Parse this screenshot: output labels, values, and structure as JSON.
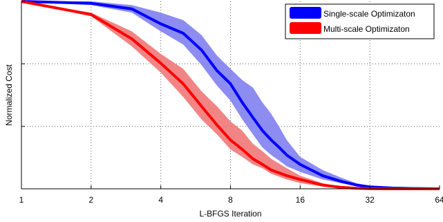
{
  "chart_data": {
    "type": "line",
    "xlabel": "L-BFGS Iteration",
    "ylabel": "Normalized Cost",
    "x_scale": "log2",
    "xlim": [
      1,
      64
    ],
    "ylim": [
      0,
      1
    ],
    "x_ticks": [
      1,
      2,
      4,
      8,
      16,
      32,
      64
    ],
    "x_tick_labels": [
      "1",
      "2",
      "4",
      "8",
      "16",
      "32",
      "64"
    ],
    "y_ticks": [
      0,
      0.333,
      0.667,
      1
    ],
    "grid": true,
    "legend_position": "top-right",
    "series": [
      {
        "name": "Single-scale Optimizaton",
        "color": "#0000ff",
        "band_color": "#7f7ff0",
        "x": [
          1,
          2,
          3,
          4,
          5,
          6,
          7,
          8,
          9,
          10,
          11,
          12,
          13,
          14,
          16,
          20,
          24,
          28,
          32,
          40,
          48,
          64
        ],
        "y": [
          1.0,
          0.99,
          0.96,
          0.88,
          0.83,
          0.74,
          0.63,
          0.56,
          0.46,
          0.38,
          0.31,
          0.26,
          0.22,
          0.18,
          0.13,
          0.07,
          0.04,
          0.02,
          0.01,
          0.004,
          0.002,
          0.0
        ],
        "lower": [
          1.0,
          0.98,
          0.94,
          0.84,
          0.77,
          0.66,
          0.55,
          0.47,
          0.37,
          0.29,
          0.22,
          0.18,
          0.15,
          0.12,
          0.09,
          0.05,
          0.03,
          0.015,
          0.008,
          0.003,
          0.001,
          0.0
        ],
        "upper": [
          1.0,
          1.0,
          0.98,
          0.94,
          0.9,
          0.82,
          0.71,
          0.64,
          0.58,
          0.54,
          0.46,
          0.4,
          0.33,
          0.26,
          0.17,
          0.1,
          0.06,
          0.03,
          0.015,
          0.006,
          0.003,
          0.0
        ]
      },
      {
        "name": "Multi-scale Optimizaton",
        "color": "#ff0000",
        "band_color": "#f07878",
        "x": [
          1,
          2,
          3,
          4,
          5,
          6,
          7,
          8,
          9,
          10,
          11,
          12,
          14,
          16,
          20,
          24,
          28,
          32,
          40,
          48,
          64
        ],
        "y": [
          1.0,
          0.93,
          0.8,
          0.67,
          0.56,
          0.44,
          0.34,
          0.26,
          0.21,
          0.16,
          0.13,
          0.1,
          0.07,
          0.05,
          0.02,
          0.008,
          0.003,
          0.001,
          0.0,
          0.0,
          0.0
        ],
        "lower": [
          1.0,
          0.92,
          0.76,
          0.62,
          0.49,
          0.37,
          0.29,
          0.21,
          0.17,
          0.13,
          0.11,
          0.08,
          0.05,
          0.03,
          0.012,
          0.004,
          0.001,
          0.0,
          0.0,
          0.0,
          0.0
        ],
        "upper": [
          1.0,
          0.94,
          0.84,
          0.72,
          0.64,
          0.52,
          0.44,
          0.36,
          0.31,
          0.24,
          0.2,
          0.16,
          0.11,
          0.07,
          0.03,
          0.012,
          0.005,
          0.002,
          0.0,
          0.0,
          0.0
        ]
      }
    ]
  }
}
